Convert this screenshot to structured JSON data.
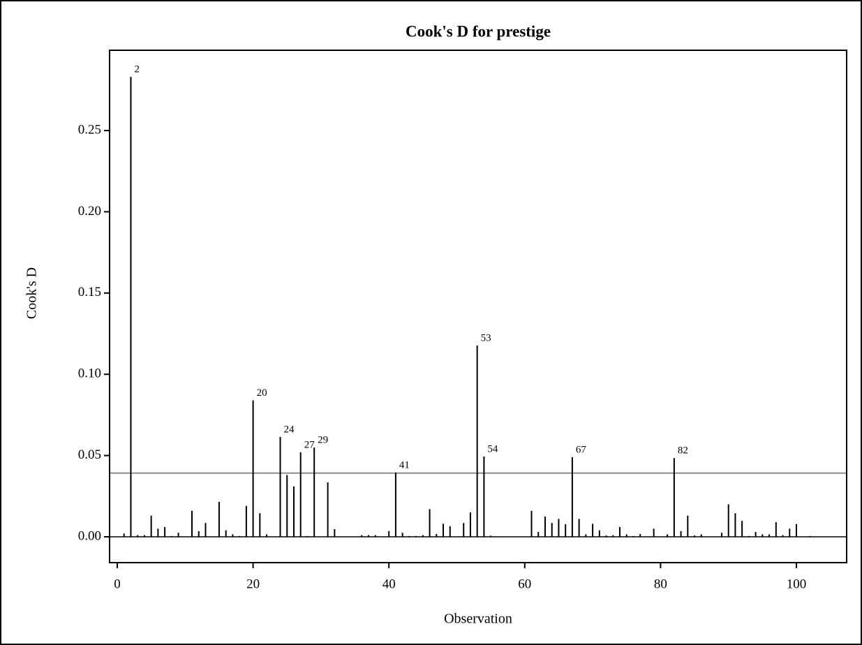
{
  "chart_data": {
    "type": "needle",
    "title": "Cook's D for prestige",
    "xlabel": "Observation",
    "ylabel": "Cook's D",
    "x": [
      1,
      2,
      3,
      4,
      5,
      6,
      7,
      8,
      9,
      10,
      11,
      12,
      13,
      14,
      15,
      16,
      17,
      18,
      19,
      20,
      21,
      22,
      23,
      24,
      25,
      26,
      27,
      28,
      29,
      30,
      31,
      32,
      33,
      34,
      35,
      36,
      37,
      38,
      39,
      40,
      41,
      42,
      43,
      44,
      45,
      46,
      47,
      48,
      49,
      50,
      51,
      52,
      53,
      54,
      55,
      56,
      57,
      58,
      59,
      60,
      61,
      62,
      63,
      64,
      65,
      66,
      67,
      68,
      69,
      70,
      71,
      72,
      73,
      74,
      75,
      76,
      77,
      78,
      79,
      80,
      81,
      82,
      83,
      84,
      85,
      86,
      87,
      88,
      89,
      90,
      91,
      92,
      93,
      94,
      95,
      96,
      97,
      98,
      99,
      100,
      101,
      102
    ],
    "values": [
      0.002,
      0.283,
      0.001,
      0.001,
      0.013,
      0.005,
      0.006,
      0.0005,
      0.0025,
      0,
      0.016,
      0.0035,
      0.0085,
      0,
      0.0215,
      0.004,
      0.0015,
      0.0005,
      0.019,
      0.084,
      0.0145,
      0.0015,
      0,
      0.0615,
      0.038,
      0.031,
      0.052,
      0.0005,
      0.055,
      0,
      0.0335,
      0.0047,
      0,
      0,
      0,
      0.001,
      0.001,
      0.001,
      0,
      0.0035,
      0.0395,
      0.0025,
      0.0005,
      0.0005,
      0.001,
      0.017,
      0.0017,
      0.008,
      0.0065,
      0,
      0.0085,
      0.015,
      0.1177,
      0.0494,
      0.0007,
      0,
      0,
      0,
      0,
      0,
      0.016,
      0.003,
      0.0125,
      0.0085,
      0.011,
      0.0077,
      0.049,
      0.011,
      0.0015,
      0.008,
      0.004,
      0.0008,
      0.001,
      0.006,
      0.0015,
      0.0005,
      0.0017,
      0,
      0.005,
      0,
      0.0015,
      0.0485,
      0.0035,
      0.013,
      0.0008,
      0.0015,
      0,
      0,
      0.0025,
      0.02,
      0.0145,
      0.0098,
      0.0005,
      0.003,
      0.0015,
      0.0015,
      0.009,
      0.001,
      0.005,
      0.0078,
      0,
      0.0005
    ],
    "labels": [
      null,
      "2",
      null,
      null,
      null,
      null,
      null,
      null,
      null,
      null,
      null,
      null,
      null,
      null,
      null,
      null,
      null,
      null,
      null,
      "20",
      null,
      null,
      null,
      "24",
      null,
      null,
      "27",
      null,
      "29",
      null,
      null,
      null,
      null,
      null,
      null,
      null,
      null,
      null,
      null,
      null,
      "41",
      null,
      null,
      null,
      null,
      null,
      null,
      null,
      null,
      null,
      null,
      null,
      "53",
      "54",
      null,
      null,
      null,
      null,
      null,
      null,
      null,
      null,
      null,
      null,
      null,
      null,
      "67",
      null,
      null,
      null,
      null,
      null,
      null,
      null,
      null,
      null,
      null,
      null,
      null,
      null,
      null,
      "82",
      null,
      null,
      null,
      null,
      null,
      null,
      null,
      null,
      null,
      null,
      null,
      null,
      null,
      null,
      null,
      null,
      null,
      null,
      null,
      null
    ],
    "color": "#000000",
    "ref_line": 0.0392,
    "ref_color": "#8c8c8c",
    "xlim": [
      -1.13,
      107.4
    ],
    "xticks": [
      0,
      20,
      40,
      60,
      80,
      100
    ],
    "ylim": [
      -0.0159,
      0.2994
    ],
    "yticks": [
      {
        "value": 0,
        "label": "0.00"
      },
      {
        "value": 0.05,
        "label": "0.05"
      },
      {
        "value": 0.1,
        "label": "0.10"
      },
      {
        "value": 0.15,
        "label": "0.15"
      },
      {
        "value": 0.2,
        "label": "0.20"
      },
      {
        "value": 0.25,
        "label": "0.25"
      }
    ]
  }
}
